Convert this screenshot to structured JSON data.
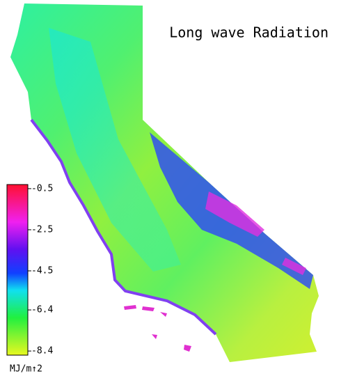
{
  "map": {
    "title": "Long wave Radiation",
    "colorbar": {
      "label": "MJ/m↑2",
      "lim": [
        -8.6,
        -0.3
      ],
      "ticks": [
        -0.5,
        -2.5,
        -4.5,
        -6.4,
        -8.4
      ]
    }
  }
}
